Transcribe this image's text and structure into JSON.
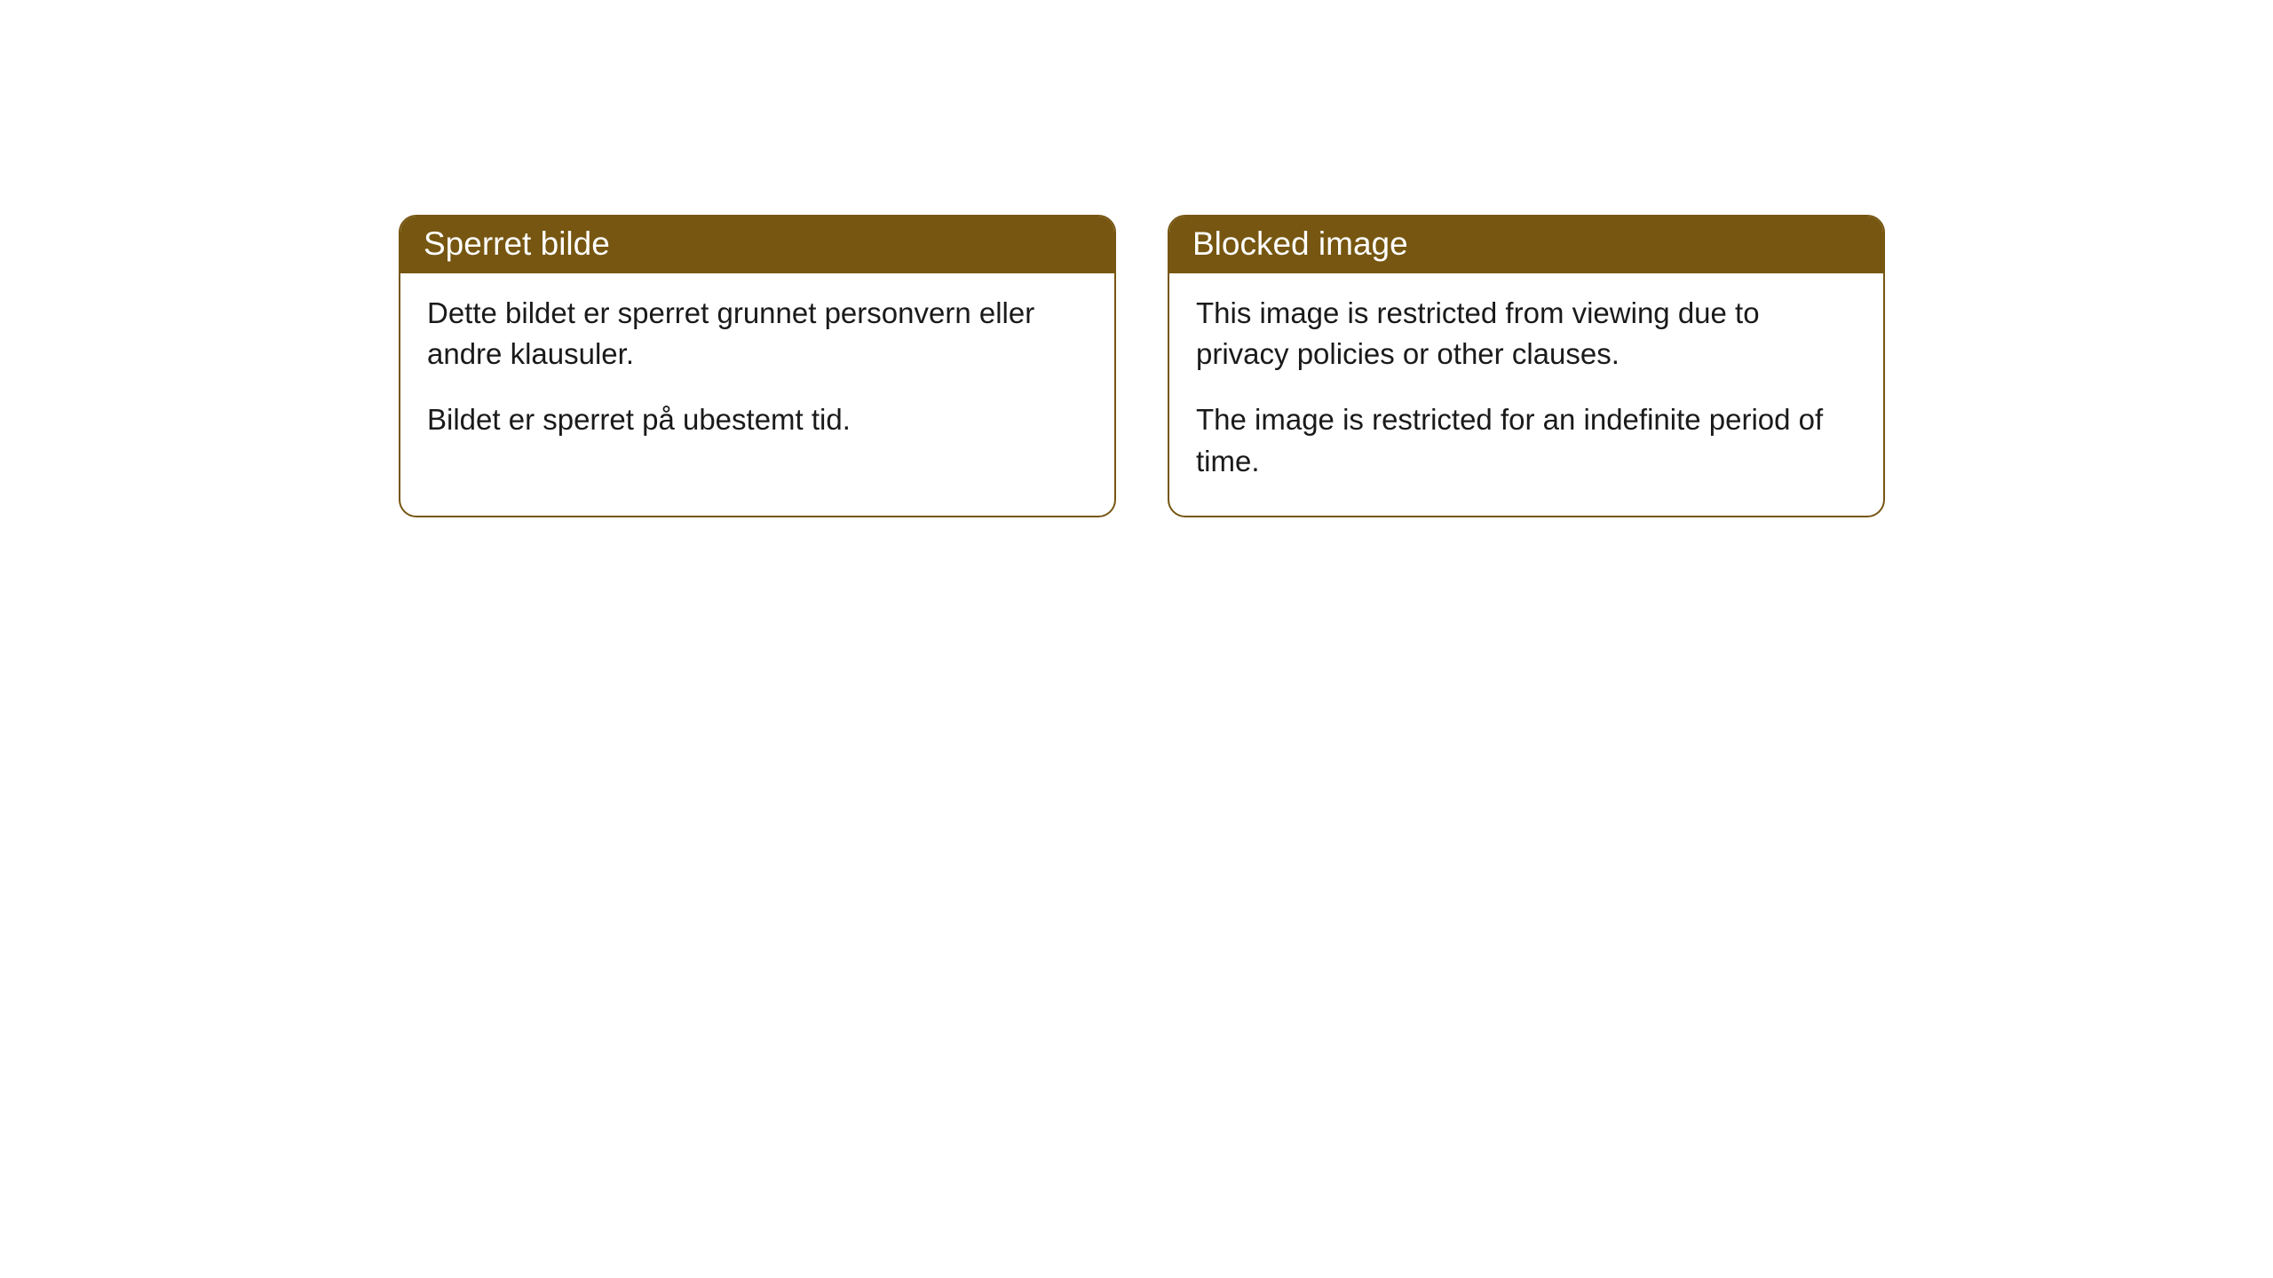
{
  "cards": [
    {
      "title": "Sperret bilde",
      "paragraph1": "Dette bildet er sperret grunnet personvern eller andre klausuler.",
      "paragraph2": "Bildet er sperret på ubestemt tid."
    },
    {
      "title": "Blocked image",
      "paragraph1": "This image is restricted from viewing due to privacy policies or other clauses.",
      "paragraph2": "The image is restricted for an indefinite period of time."
    }
  ],
  "styling": {
    "header_bg_color": "#765611",
    "header_text_color": "#ffffff",
    "border_color": "#765611",
    "body_text_color": "#1a1a1a",
    "card_bg_color": "#ffffff",
    "page_bg_color": "#ffffff",
    "border_radius": 20,
    "header_fontsize": 37,
    "body_fontsize": 33
  }
}
